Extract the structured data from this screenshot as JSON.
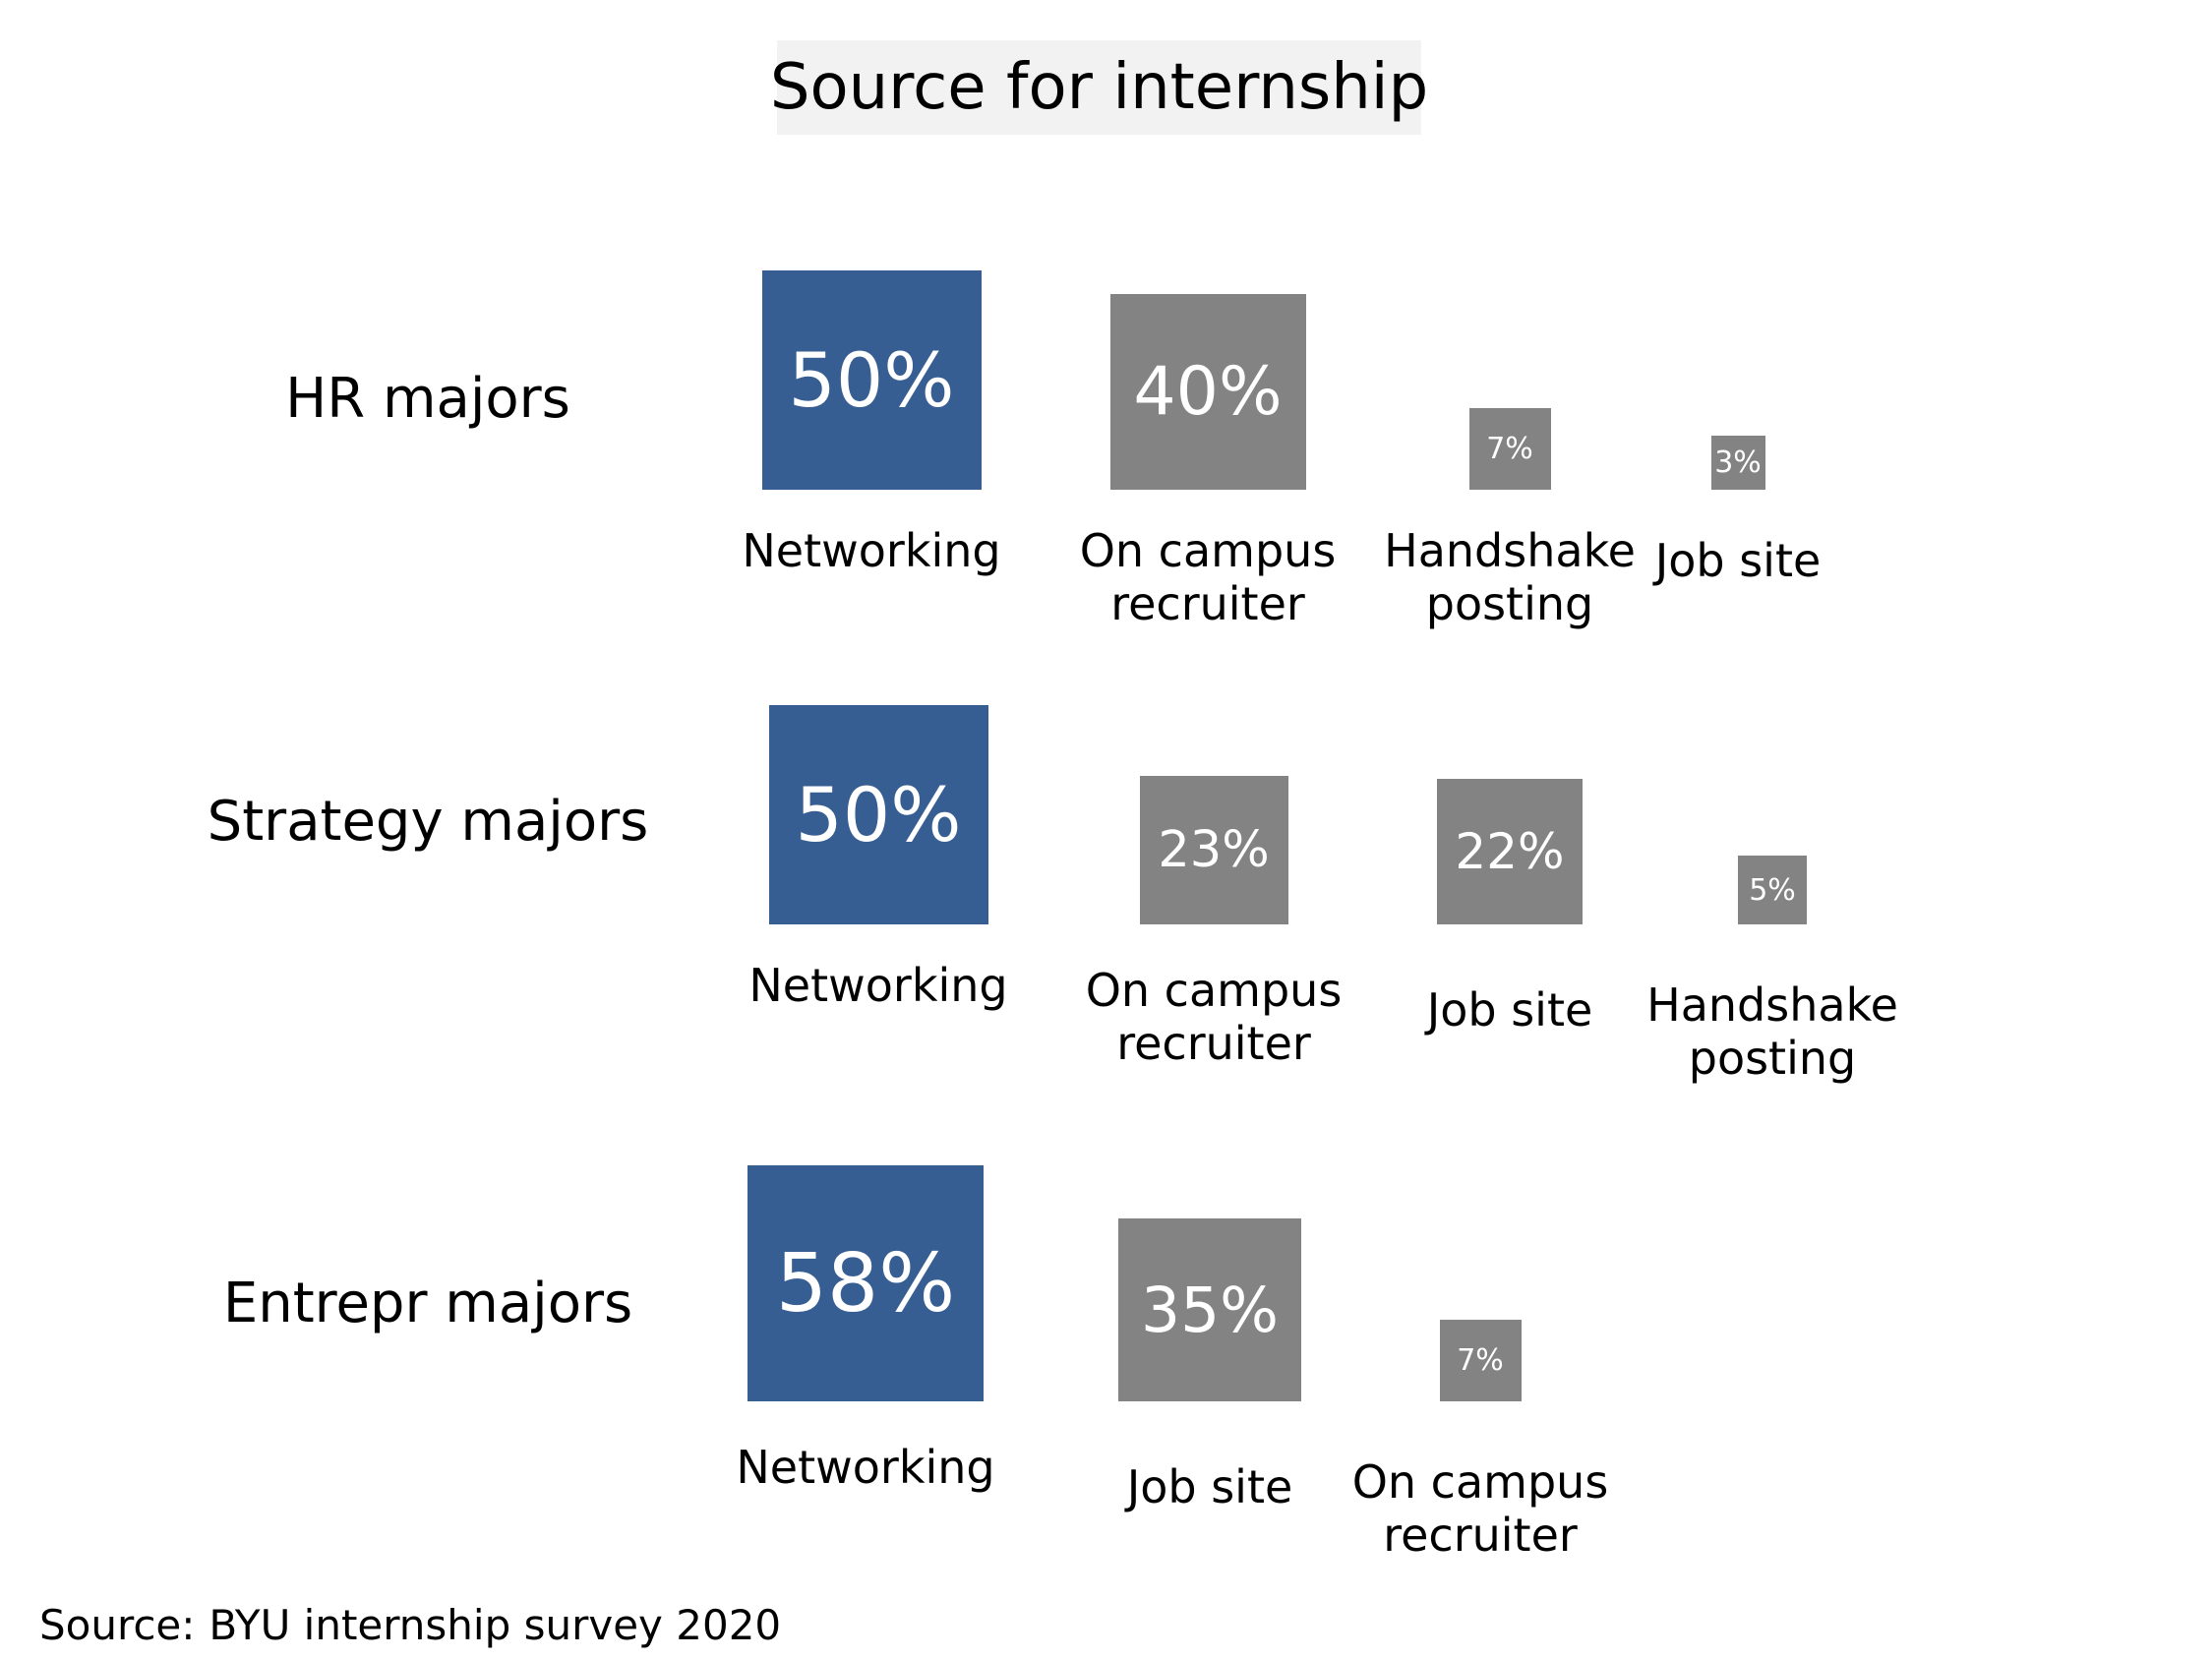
{
  "chart_data": {
    "type": "proportional-area tiles",
    "title": "Source for internship",
    "colors": {
      "highlight": "#375e93",
      "other": "#838383",
      "title_bg": "#f2f2f2"
    },
    "groups": [
      {
        "name": "HR majors",
        "items": [
          {
            "label": "Networking",
            "value": 50,
            "value_label": "50%",
            "highlight": true
          },
          {
            "label": "On campus\nrecruiter",
            "value": 40,
            "value_label": "40%",
            "highlight": false
          },
          {
            "label": "Handshake\nposting",
            "value": 7,
            "value_label": "7%",
            "highlight": false
          },
          {
            "label": "Job site",
            "value": 3,
            "value_label": "3%",
            "highlight": false
          }
        ]
      },
      {
        "name": "Strategy majors",
        "items": [
          {
            "label": "Networking",
            "value": 50,
            "value_label": "50%",
            "highlight": true
          },
          {
            "label": "On campus\nrecruiter",
            "value": 23,
            "value_label": "23%",
            "highlight": false
          },
          {
            "label": "Job site",
            "value": 22,
            "value_label": "22%",
            "highlight": false
          },
          {
            "label": "Handshake\nposting",
            "value": 5,
            "value_label": "5%",
            "highlight": false
          }
        ]
      },
      {
        "name": "Entrepr majors",
        "items": [
          {
            "label": "Networking",
            "value": 58,
            "value_label": "58%",
            "highlight": true
          },
          {
            "label": "Job site",
            "value": 35,
            "value_label": "35%",
            "highlight": false
          },
          {
            "label": "On campus\nrecruiter",
            "value": 7,
            "value_label": "7%",
            "highlight": false
          }
        ]
      }
    ]
  },
  "footer": {
    "source_prefix": "Source:",
    "source_text": "BYU internship survey 2020"
  }
}
